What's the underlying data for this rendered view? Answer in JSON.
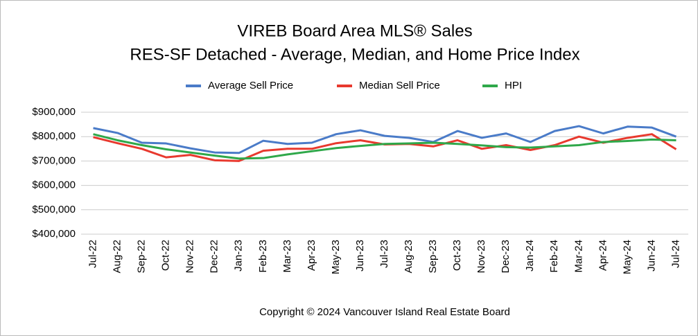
{
  "chart_data": {
    "type": "line",
    "title": "VIREB Board Area MLS® Sales",
    "subtitle": "RES-SF Detached - Average, Median, and Home Price Index",
    "footer": "Copyright © 2024 Vancouver Island Real Estate Board",
    "categories": [
      "Jul-22",
      "Aug-22",
      "Sep-22",
      "Oct-22",
      "Nov-22",
      "Dec-22",
      "Jan-23",
      "Feb-23",
      "Mar-23",
      "Apr-23",
      "May-23",
      "Jun-23",
      "Jul-23",
      "Aug-23",
      "Sep-23",
      "Oct-23",
      "Nov-23",
      "Dec-23",
      "Jan-24",
      "Feb-24",
      "Mar-24",
      "Apr-24",
      "May-24",
      "Jun-24",
      "Jul-24"
    ],
    "series": [
      {
        "name": "Average Sell Price",
        "color": "#4a7bc8",
        "values": [
          835000,
          815000,
          775000,
          772000,
          752000,
          735000,
          733000,
          783000,
          770000,
          775000,
          810000,
          826000,
          803000,
          795000,
          778000,
          823000,
          795000,
          813000,
          778000,
          823000,
          843000,
          813000,
          841000,
          837000,
          800000
        ]
      },
      {
        "name": "Median Sell Price",
        "color": "#e8392e",
        "values": [
          798000,
          773000,
          750000,
          715000,
          725000,
          703000,
          700000,
          742000,
          750000,
          750000,
          773000,
          785000,
          768000,
          770000,
          760000,
          785000,
          750000,
          765000,
          745000,
          765000,
          800000,
          775000,
          795000,
          810000,
          748000
        ]
      },
      {
        "name": "HPI",
        "color": "#2fa84a",
        "values": [
          810000,
          785000,
          765000,
          748000,
          735000,
          722000,
          710000,
          712000,
          727000,
          740000,
          753000,
          762000,
          770000,
          772000,
          775000,
          770000,
          764000,
          757000,
          755000,
          760000,
          765000,
          778000,
          782000,
          788000,
          785000
        ]
      }
    ],
    "ylim": [
      400000,
      900000
    ],
    "yticks": [
      {
        "value": 400000,
        "label": "$400,000"
      },
      {
        "value": 500000,
        "label": "$500,000"
      },
      {
        "value": 600000,
        "label": "$600,000"
      },
      {
        "value": 700000,
        "label": "$700,000"
      },
      {
        "value": 800000,
        "label": "$800,000"
      },
      {
        "value": 900000,
        "label": "$900,000"
      }
    ],
    "grid": true,
    "legend": "top"
  }
}
